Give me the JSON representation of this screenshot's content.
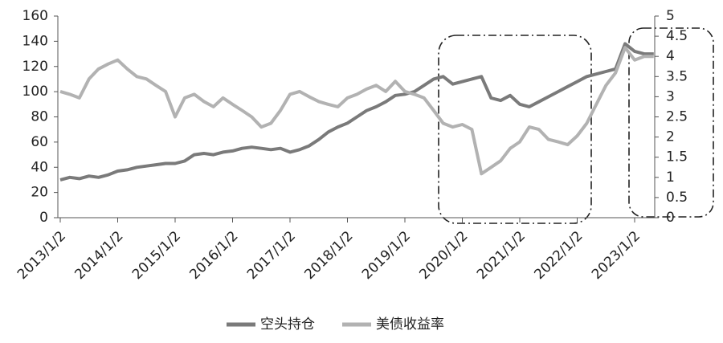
{
  "chart_data": {
    "type": "line",
    "categories": [
      "2013/1/2",
      null,
      null,
      null,
      null,
      null,
      "2014/1/2",
      null,
      null,
      null,
      null,
      null,
      "2015/1/2",
      null,
      null,
      null,
      null,
      null,
      "2016/1/2",
      null,
      null,
      null,
      null,
      null,
      "2017/1/2",
      null,
      null,
      null,
      null,
      null,
      "2018/1/2",
      null,
      null,
      null,
      null,
      null,
      "2019/1/2",
      null,
      null,
      null,
      null,
      null,
      "2020/1/2",
      null,
      null,
      null,
      null,
      null,
      "2021/1/2",
      null,
      null,
      null,
      null,
      null,
      "2022/1/2",
      null,
      null,
      null,
      null,
      null,
      "2023/1/2",
      null,
      null
    ],
    "series": [
      {
        "name": "空头持仓",
        "color": "#7a7a7a",
        "values": [
          30,
          32,
          31,
          33,
          32,
          34,
          37,
          38,
          40,
          41,
          42,
          43,
          43,
          45,
          50,
          51,
          50,
          52,
          53,
          55,
          56,
          55,
          54,
          55,
          52,
          54,
          57,
          62,
          68,
          72,
          75,
          80,
          85,
          88,
          92,
          97,
          98,
          100,
          105,
          110,
          112,
          106,
          108,
          110,
          112,
          95,
          93,
          97,
          90,
          88,
          92,
          96,
          100,
          104,
          108,
          112,
          114,
          116,
          118,
          138,
          132,
          130,
          130
        ]
      },
      {
        "name": "美债收益率",
        "color": "#b2b2b2",
        "axis": "y2",
        "values": [
          3.13,
          3.06,
          2.97,
          3.44,
          3.69,
          3.81,
          3.91,
          3.69,
          3.5,
          3.44,
          3.28,
          3.13,
          2.5,
          2.97,
          3.06,
          2.88,
          2.75,
          2.97,
          2.81,
          2.66,
          2.5,
          2.25,
          2.34,
          2.66,
          3.06,
          3.13,
          3,
          2.88,
          2.81,
          2.75,
          2.97,
          3.06,
          3.19,
          3.28,
          3.13,
          3.38,
          3.13,
          3.06,
          2.97,
          2.66,
          2.34,
          2.25,
          2.31,
          2.19,
          1.09,
          1.25,
          1.41,
          1.72,
          1.88,
          2.25,
          2.19,
          1.94,
          1.88,
          1.81,
          2.03,
          2.34,
          2.81,
          3.28,
          3.59,
          4.22,
          3.91,
          4,
          4
        ]
      }
    ],
    "ylim": [
      0,
      160
    ],
    "yticks": [
      0,
      20,
      40,
      60,
      80,
      100,
      120,
      140,
      160
    ],
    "y2lim": [
      0,
      5
    ],
    "y2ticks": [
      0,
      0.5,
      1,
      1.5,
      2,
      2.5,
      3,
      3.5,
      4,
      4.5,
      5
    ],
    "legend": "bottom"
  }
}
